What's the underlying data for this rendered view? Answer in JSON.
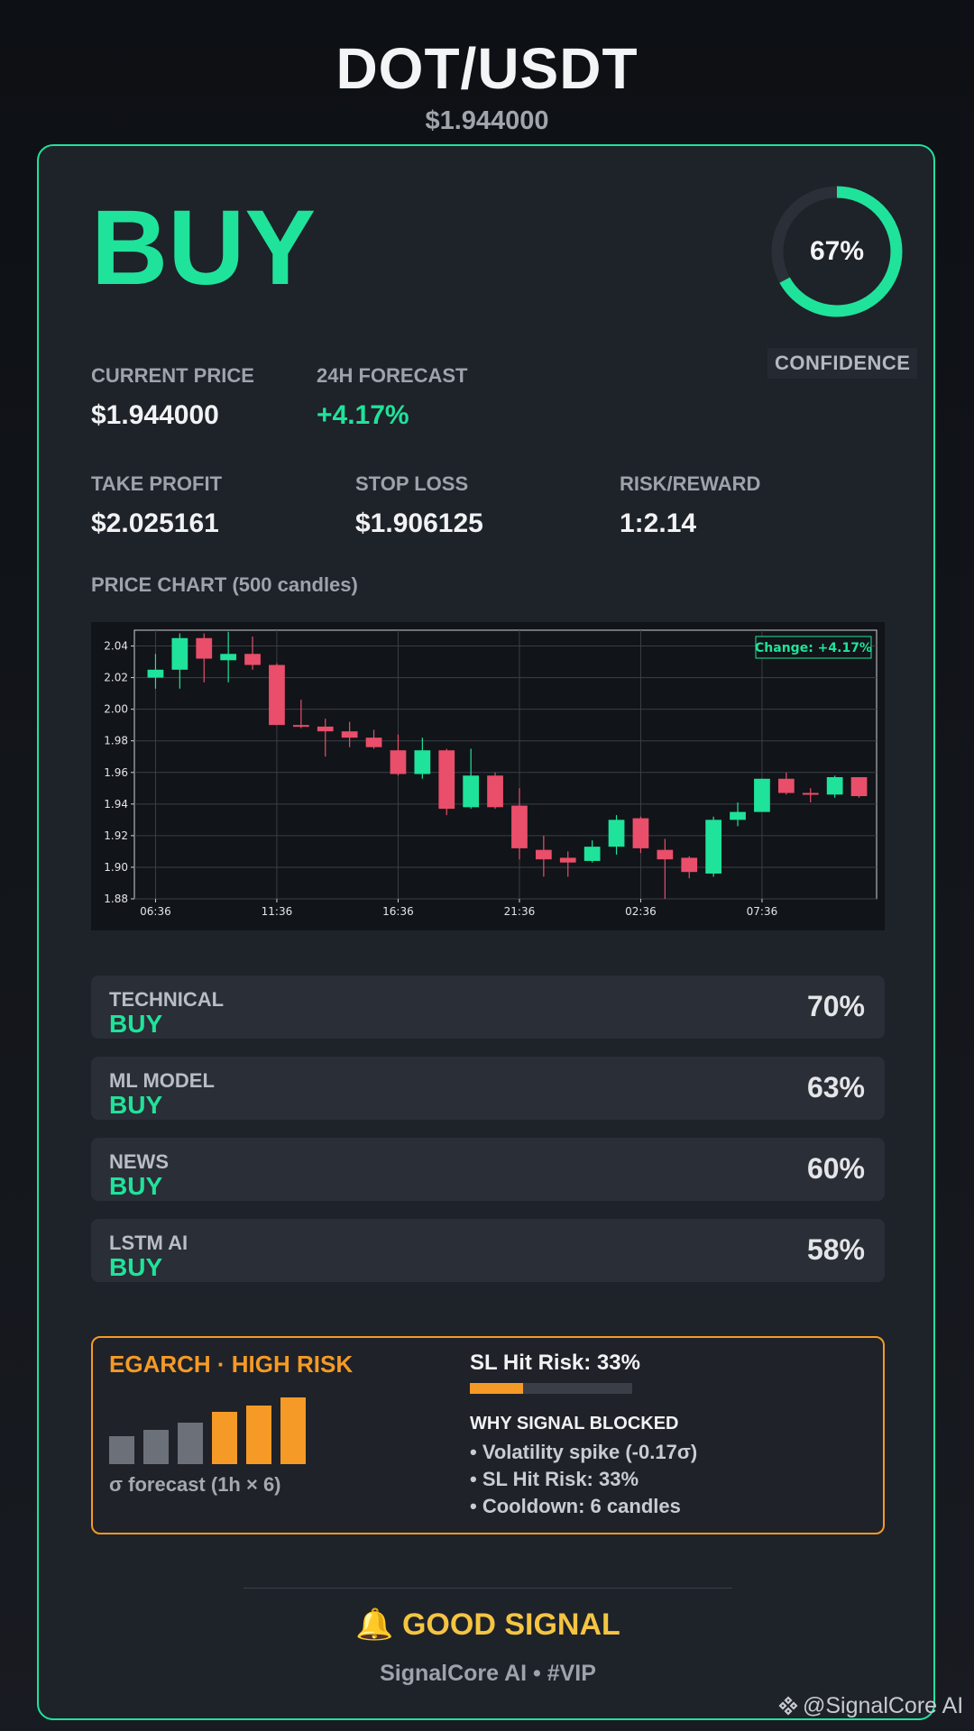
{
  "header": {
    "pair": "DOT/USDT",
    "price": "$1.944000"
  },
  "signal": "BUY",
  "confidence": {
    "value": 0.67,
    "label": "67%",
    "caption": "CONFIDENCE"
  },
  "metrics": {
    "current_price": {
      "label": "CURRENT PRICE",
      "value": "$1.944000"
    },
    "forecast": {
      "label": "24H FORECAST",
      "value": "+4.17%"
    },
    "take_profit": {
      "label": "TAKE PROFIT",
      "value": "$2.025161"
    },
    "stop_loss": {
      "label": "STOP LOSS",
      "value": "$1.906125"
    },
    "risk_reward": {
      "label": "RISK/REWARD",
      "value": "1:2.14"
    }
  },
  "chart_label": "PRICE CHART (500 candles)",
  "chart_data": {
    "type": "candlestick",
    "ylim": [
      1.88,
      2.05
    ],
    "yticks": [
      "1.88",
      "1.90",
      "1.92",
      "1.94",
      "1.96",
      "1.98",
      "2.00",
      "2.02",
      "2.04"
    ],
    "xticks": [
      "06:36",
      "11:36",
      "16:36",
      "21:36",
      "02:36",
      "07:36"
    ],
    "annotation": "Change: +4.17%",
    "candles": [
      {
        "o": 2.02,
        "h": 2.035,
        "l": 2.013,
        "c": 2.025
      },
      {
        "o": 2.025,
        "h": 2.048,
        "l": 2.013,
        "c": 2.045
      },
      {
        "o": 2.045,
        "h": 2.048,
        "l": 2.017,
        "c": 2.032
      },
      {
        "o": 2.031,
        "h": 2.049,
        "l": 2.017,
        "c": 2.035
      },
      {
        "o": 2.035,
        "h": 2.046,
        "l": 2.025,
        "c": 2.028
      },
      {
        "o": 2.028,
        "h": 2.029,
        "l": 1.99,
        "c": 1.99
      },
      {
        "o": 1.99,
        "h": 2.006,
        "l": 1.988,
        "c": 1.989
      },
      {
        "o": 1.989,
        "h": 1.994,
        "l": 1.97,
        "c": 1.986
      },
      {
        "o": 1.986,
        "h": 1.992,
        "l": 1.976,
        "c": 1.982
      },
      {
        "o": 1.982,
        "h": 1.987,
        "l": 1.975,
        "c": 1.976
      },
      {
        "o": 1.974,
        "h": 1.984,
        "l": 1.958,
        "c": 1.959
      },
      {
        "o": 1.959,
        "h": 1.982,
        "l": 1.956,
        "c": 1.974
      },
      {
        "o": 1.974,
        "h": 1.975,
        "l": 1.933,
        "c": 1.937
      },
      {
        "o": 1.938,
        "h": 1.975,
        "l": 1.937,
        "c": 1.958
      },
      {
        "o": 1.958,
        "h": 1.96,
        "l": 1.937,
        "c": 1.938
      },
      {
        "o": 1.939,
        "h": 1.95,
        "l": 1.905,
        "c": 1.912
      },
      {
        "o": 1.911,
        "h": 1.92,
        "l": 1.894,
        "c": 1.905
      },
      {
        "o": 1.906,
        "h": 1.91,
        "l": 1.894,
        "c": 1.903
      },
      {
        "o": 1.904,
        "h": 1.917,
        "l": 1.903,
        "c": 1.913
      },
      {
        "o": 1.913,
        "h": 1.933,
        "l": 1.908,
        "c": 1.93
      },
      {
        "o": 1.931,
        "h": 1.932,
        "l": 1.909,
        "c": 1.912
      },
      {
        "o": 1.911,
        "h": 1.918,
        "l": 1.88,
        "c": 1.905
      },
      {
        "o": 1.906,
        "h": 1.907,
        "l": 1.893,
        "c": 1.897
      },
      {
        "o": 1.896,
        "h": 1.932,
        "l": 1.894,
        "c": 1.93
      },
      {
        "o": 1.93,
        "h": 1.941,
        "l": 1.926,
        "c": 1.935
      },
      {
        "o": 1.935,
        "h": 1.956,
        "l": 1.935,
        "c": 1.956
      },
      {
        "o": 1.956,
        "h": 1.96,
        "l": 1.946,
        "c": 1.947
      },
      {
        "o": 1.947,
        "h": 1.95,
        "l": 1.941,
        "c": 1.946
      },
      {
        "o": 1.946,
        "h": 1.958,
        "l": 1.944,
        "c": 1.957
      },
      {
        "o": 1.957,
        "h": 1.957,
        "l": 1.944,
        "c": 1.945
      }
    ]
  },
  "analysis": [
    {
      "name": "TECHNICAL",
      "signal": "BUY",
      "pct": "70%"
    },
    {
      "name": "ML MODEL",
      "signal": "BUY",
      "pct": "63%"
    },
    {
      "name": "NEWS",
      "signal": "BUY",
      "pct": "60%"
    },
    {
      "name": "LSTM AI",
      "signal": "BUY",
      "pct": "58%"
    }
  ],
  "risk": {
    "title": "EGARCH · HIGH RISK",
    "sigma_caption": "σ forecast (1h × 6)",
    "sigma_bars": [
      {
        "level": 0.42,
        "color": "#6b7079"
      },
      {
        "level": 0.52,
        "color": "#6b7079"
      },
      {
        "level": 0.62,
        "color": "#6b7079"
      },
      {
        "level": 0.78,
        "color": "#f59a26"
      },
      {
        "level": 0.88,
        "color": "#f59a26"
      },
      {
        "level": 1.0,
        "color": "#f59a26"
      }
    ],
    "sl_hit_label": "SL Hit Risk: 33%",
    "sl_hit_value": 0.33,
    "why_title": "WHY SIGNAL BLOCKED",
    "bullets": [
      "• Volatility spike (-0.17σ)",
      "• SL Hit Risk: 33%",
      "• Cooldown: 6 candles"
    ]
  },
  "footer": {
    "good_signal": "🔔 GOOD SIGNAL",
    "brand": "SignalCore AI • #VIP",
    "watermark": "@SignalCore AI"
  },
  "colors": {
    "accent": "#1fe39a",
    "bear": "#e94e6a",
    "warn": "#f59a26",
    "gold": "#f5c542"
  }
}
